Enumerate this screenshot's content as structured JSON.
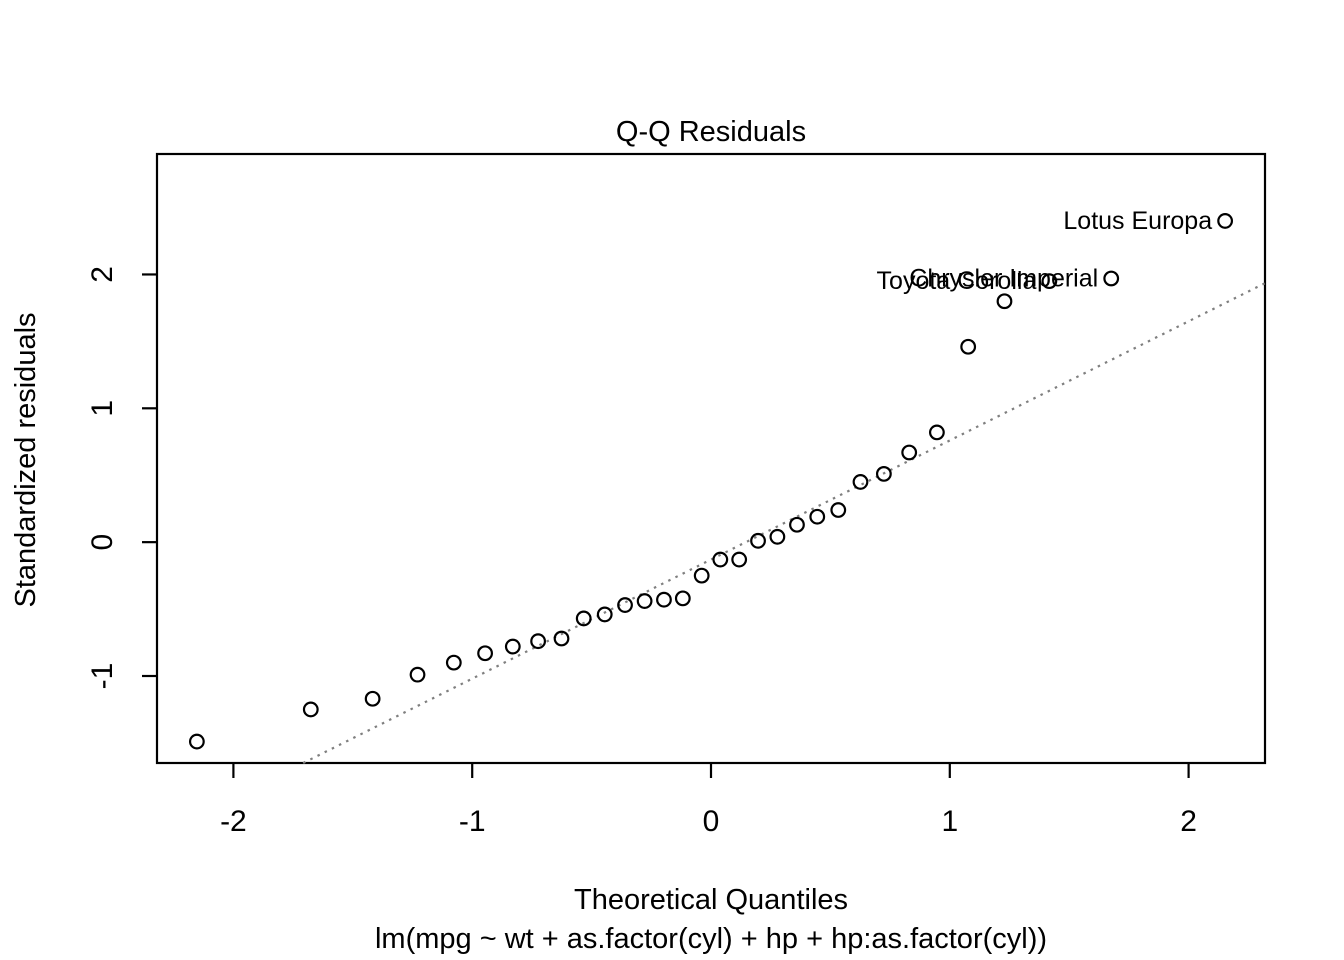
{
  "chart_data": {
    "type": "scatter",
    "subtype": "qq-plot",
    "title": "Q-Q Residuals",
    "xlabel": "Theoretical Quantiles",
    "sub": "lm(mpg ~ wt + as.factor(cyl) + hp + hp:as.factor(cyl))",
    "ylabel": "Standardized residuals",
    "xlim": [
      -2.32,
      2.32
    ],
    "ylim": [
      -1.65,
      2.9
    ],
    "xticks": [
      -2,
      -1,
      0,
      1,
      2
    ],
    "yticks": [
      -1,
      0,
      1,
      2
    ],
    "grid": false,
    "legend": false,
    "background_color": "#ffffff",
    "point_color": "#000000",
    "point_style": "open-circle",
    "points": [
      {
        "q": -2.153,
        "v": -1.49
      },
      {
        "q": -1.676,
        "v": -1.25
      },
      {
        "q": -1.417,
        "v": -1.17
      },
      {
        "q": -1.229,
        "v": -0.99
      },
      {
        "q": -1.077,
        "v": -0.9
      },
      {
        "q": -0.946,
        "v": -0.83
      },
      {
        "q": -0.83,
        "v": -0.78
      },
      {
        "q": -0.724,
        "v": -0.74
      },
      {
        "q": -0.626,
        "v": -0.72
      },
      {
        "q": -0.533,
        "v": -0.57
      },
      {
        "q": -0.445,
        "v": -0.54
      },
      {
        "q": -0.36,
        "v": -0.47
      },
      {
        "q": -0.278,
        "v": -0.44
      },
      {
        "q": -0.197,
        "v": -0.43
      },
      {
        "q": -0.118,
        "v": -0.42
      },
      {
        "q": -0.039,
        "v": -0.25
      },
      {
        "q": 0.039,
        "v": -0.13
      },
      {
        "q": 0.118,
        "v": -0.13
      },
      {
        "q": 0.197,
        "v": 0.01
      },
      {
        "q": 0.278,
        "v": 0.04
      },
      {
        "q": 0.36,
        "v": 0.13
      },
      {
        "q": 0.445,
        "v": 0.19
      },
      {
        "q": 0.533,
        "v": 0.24
      },
      {
        "q": 0.626,
        "v": 0.45
      },
      {
        "q": 0.724,
        "v": 0.51
      },
      {
        "q": 0.83,
        "v": 0.67
      },
      {
        "q": 0.946,
        "v": 0.82
      },
      {
        "q": 1.077,
        "v": 1.46
      },
      {
        "q": 1.229,
        "v": 1.8
      },
      {
        "q": 1.417,
        "v": 1.95
      },
      {
        "q": 1.676,
        "v": 1.97
      },
      {
        "q": 2.153,
        "v": 2.4
      }
    ],
    "labeled_points": [
      {
        "label": "Toyota Corolla",
        "q": 1.417,
        "v": 1.95
      },
      {
        "label": "Chrysler Imperial",
        "q": 1.676,
        "v": 1.97
      },
      {
        "label": "Lotus Europa",
        "q": 2.153,
        "v": 2.4
      }
    ],
    "reference_line": {
      "intercept": -0.13,
      "slope": 0.89,
      "style": "dotted",
      "color": "#7f7f7f"
    }
  }
}
